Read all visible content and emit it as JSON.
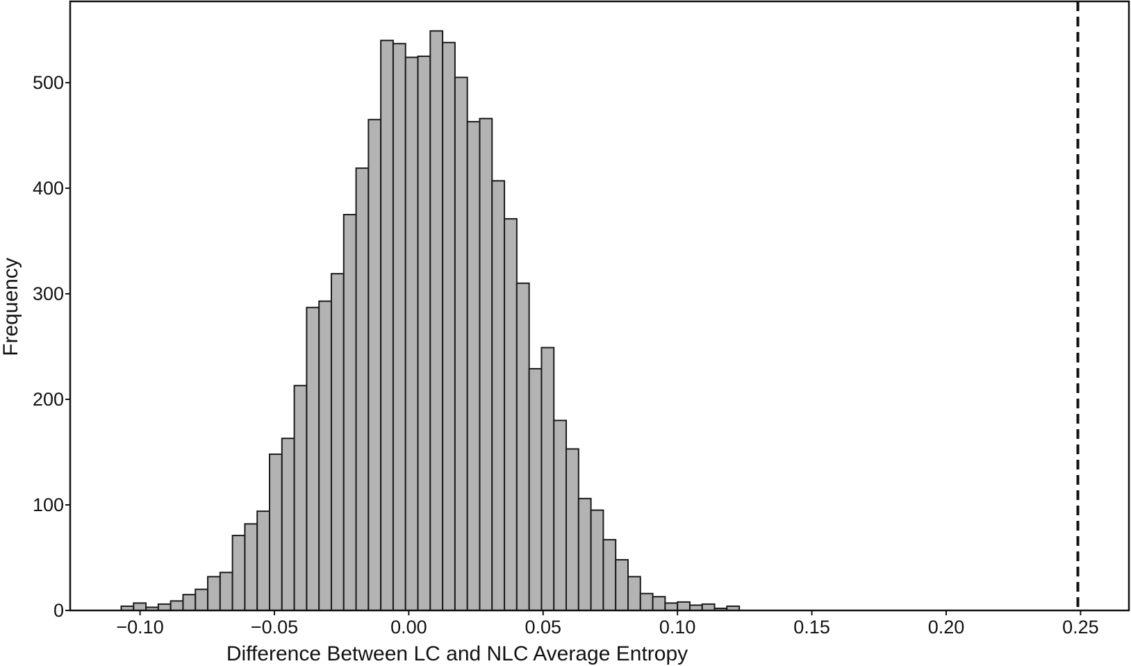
{
  "chart_data": {
    "type": "bar",
    "subtype": "histogram",
    "title": "",
    "xlabel": "Difference Between LC and NLC Average Entropy",
    "ylabel": "Frequency",
    "xlim": [
      -0.126,
      0.268
    ],
    "ylim": [
      0,
      577
    ],
    "xticks": [
      -0.1,
      -0.05,
      0.0,
      0.05,
      0.1,
      0.15,
      0.2,
      0.25
    ],
    "xtick_labels": [
      "−0.10",
      "−0.05",
      "0.00",
      "0.05",
      "0.10",
      "0.15",
      "0.20",
      "0.25"
    ],
    "yticks": [
      0,
      100,
      200,
      300,
      400,
      500
    ],
    "ytick_labels": [
      "0",
      "100",
      "200",
      "300",
      "400",
      "500"
    ],
    "grid": false,
    "legend": "none",
    "bar_color": "#b3b3b3",
    "edge_color": "#1a1a1a",
    "bin_start": -0.107,
    "bin_width": 0.0046,
    "values": [
      4,
      7,
      3,
      6,
      9,
      15,
      20,
      32,
      36,
      71,
      82,
      94,
      148,
      163,
      213,
      287,
      293,
      319,
      375,
      419,
      465,
      540,
      537,
      524,
      525,
      549,
      538,
      505,
      463,
      466,
      407,
      371,
      310,
      229,
      249,
      180,
      153,
      106,
      95,
      67,
      48,
      32,
      16,
      13,
      7,
      8,
      5,
      6,
      2,
      4
    ],
    "annotations": [
      {
        "type": "vertical-dashed-line",
        "x": 0.249,
        "color": "#111111"
      }
    ]
  }
}
